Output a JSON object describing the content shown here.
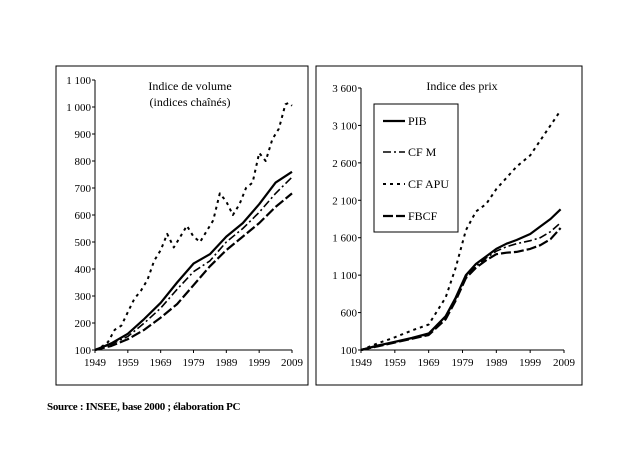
{
  "source": "Source : INSEE, base 2000 ; élaboration PC",
  "chart_data": [
    {
      "type": "line",
      "title": "Indice de volume",
      "subtitle": "(indices chaînés)",
      "xlabel": "",
      "ylabel": "",
      "xlim": [
        1949,
        2009
      ],
      "ylim": [
        100,
        1100
      ],
      "xticks": [
        1949,
        1959,
        1969,
        1979,
        1989,
        1999,
        2009
      ],
      "yticks": [
        100,
        200,
        300,
        400,
        500,
        600,
        700,
        800,
        900,
        1000,
        1100
      ],
      "ytick_labels": [
        "100",
        "200",
        "300",
        "400",
        "500",
        "600",
        "700",
        "800",
        "900",
        "1 000",
        "1 100"
      ],
      "grid": false,
      "series": [
        {
          "style": "solid",
          "x": [
            1949,
            1954,
            1959,
            1964,
            1969,
            1974,
            1979,
            1984,
            1989,
            1994,
            1999,
            2004,
            2009
          ],
          "values": [
            100,
            125,
            160,
            215,
            275,
            350,
            420,
            455,
            520,
            570,
            640,
            720,
            760
          ]
        },
        {
          "style": "dashdot",
          "x": [
            1949,
            1954,
            1959,
            1964,
            1969,
            1974,
            1979,
            1984,
            1989,
            1994,
            1999,
            2004,
            2009
          ],
          "values": [
            100,
            122,
            150,
            200,
            255,
            325,
            390,
            430,
            500,
            550,
            610,
            680,
            740
          ]
        },
        {
          "style": "dotted",
          "x": [
            1949,
            1951,
            1953,
            1955,
            1957,
            1959,
            1961,
            1963,
            1965,
            1967,
            1969,
            1971,
            1973,
            1975,
            1977,
            1979,
            1981,
            1983,
            1985,
            1987,
            1989,
            1991,
            1993,
            1995,
            1997,
            1999,
            2001,
            2003,
            2005,
            2007,
            2008,
            2009
          ],
          "values": [
            100,
            112,
            130,
            175,
            190,
            240,
            290,
            320,
            360,
            430,
            470,
            530,
            480,
            520,
            560,
            520,
            500,
            540,
            580,
            680,
            650,
            600,
            640,
            700,
            720,
            830,
            800,
            880,
            920,
            1010,
            1015,
            1005
          ]
        },
        {
          "style": "longdash",
          "x": [
            1949,
            1954,
            1959,
            1964,
            1969,
            1974,
            1979,
            1984,
            1989,
            1994,
            1999,
            2004,
            2009
          ],
          "values": [
            100,
            115,
            140,
            175,
            220,
            270,
            340,
            410,
            470,
            520,
            570,
            630,
            680
          ]
        }
      ]
    },
    {
      "type": "line",
      "title": "Indice des prix",
      "xlabel": "",
      "ylabel": "",
      "xlim": [
        1949,
        2009
      ],
      "ylim": [
        100,
        3600
      ],
      "xticks": [
        1949,
        1959,
        1969,
        1979,
        1989,
        1999,
        2009
      ],
      "yticks": [
        100,
        600,
        1100,
        1600,
        2100,
        2600,
        3100,
        3600
      ],
      "ytick_labels": [
        "100",
        "600",
        "1 100",
        "1 600",
        "2 100",
        "2 600",
        "3 100",
        "3 600"
      ],
      "grid": false,
      "legend_position": "top-left",
      "series": [
        {
          "name": "PIB",
          "style": "solid",
          "x": [
            1949,
            1954,
            1959,
            1964,
            1969,
            1974,
            1977,
            1980,
            1983,
            1986,
            1989,
            1992,
            1995,
            1999,
            2002,
            2005,
            2008
          ],
          "values": [
            100,
            160,
            210,
            260,
            320,
            550,
            800,
            1100,
            1250,
            1350,
            1450,
            1520,
            1570,
            1650,
            1750,
            1850,
            1980
          ]
        },
        {
          "name": "CF M",
          "style": "dashdot",
          "x": [
            1949,
            1954,
            1959,
            1964,
            1969,
            1974,
            1977,
            1980,
            1983,
            1986,
            1989,
            1992,
            1995,
            1999,
            2002,
            2005,
            2008
          ],
          "values": [
            100,
            155,
            205,
            255,
            310,
            540,
            780,
            1080,
            1220,
            1330,
            1420,
            1480,
            1520,
            1560,
            1600,
            1680,
            1800
          ]
        },
        {
          "name": "CF APU",
          "style": "dotted",
          "x": [
            1949,
            1954,
            1959,
            1964,
            1969,
            1974,
            1977,
            1980,
            1983,
            1986,
            1989,
            1992,
            1995,
            1999,
            2002,
            2005,
            2008
          ],
          "values": [
            100,
            190,
            270,
            360,
            440,
            800,
            1200,
            1700,
            1950,
            2050,
            2250,
            2400,
            2550,
            2700,
            2900,
            3100,
            3300
          ]
        },
        {
          "name": "FBCF",
          "style": "longdash",
          "x": [
            1949,
            1954,
            1959,
            1964,
            1969,
            1974,
            1977,
            1980,
            1983,
            1986,
            1989,
            1992,
            1995,
            1999,
            2002,
            2005,
            2008
          ],
          "values": [
            100,
            150,
            200,
            250,
            300,
            510,
            760,
            1060,
            1200,
            1300,
            1380,
            1400,
            1410,
            1450,
            1500,
            1580,
            1730
          ]
        }
      ]
    }
  ]
}
